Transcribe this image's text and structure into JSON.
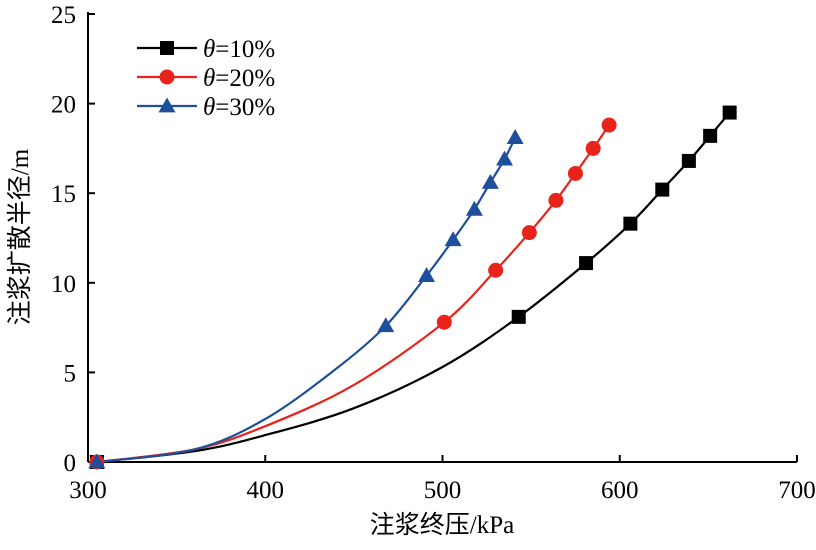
{
  "chart_data": {
    "type": "line",
    "title": "",
    "xlabel": "注浆终压/kPa",
    "ylabel": "注浆扩散半径/m",
    "xlim": [
      300,
      700
    ],
    "ylim": [
      0,
      25
    ],
    "x_ticks": [
      300,
      400,
      500,
      600,
      700
    ],
    "y_ticks": [
      0,
      5,
      10,
      15,
      20,
      25
    ],
    "x_tick_labels": [
      "300",
      "400",
      "500",
      "600",
      "700"
    ],
    "y_tick_labels": [
      "0",
      "5",
      "10",
      "15",
      "20",
      "25"
    ],
    "grid": false,
    "legend_position": "top-left",
    "series": [
      {
        "name": "θ=10%",
        "legend_symbol": "θ",
        "legend_value": "=10%",
        "color": "#000000",
        "marker": "square",
        "points": [
          {
            "x": 305,
            "y": 0.0
          },
          {
            "x": 543,
            "y": 8.1
          },
          {
            "x": 581,
            "y": 11.1
          },
          {
            "x": 606,
            "y": 13.3
          },
          {
            "x": 624,
            "y": 15.2
          },
          {
            "x": 639,
            "y": 16.8
          },
          {
            "x": 651,
            "y": 18.2
          },
          {
            "x": 662,
            "y": 19.5
          }
        ],
        "curve": [
          {
            "x": 305,
            "y": 0.0
          },
          {
            "x": 360,
            "y": 0.6
          },
          {
            "x": 400,
            "y": 1.5
          },
          {
            "x": 450,
            "y": 3.0
          },
          {
            "x": 500,
            "y": 5.3
          },
          {
            "x": 543,
            "y": 8.1
          },
          {
            "x": 581,
            "y": 11.1
          },
          {
            "x": 606,
            "y": 13.3
          },
          {
            "x": 624,
            "y": 15.2
          },
          {
            "x": 639,
            "y": 16.8
          },
          {
            "x": 651,
            "y": 18.2
          },
          {
            "x": 662,
            "y": 19.5
          }
        ]
      },
      {
        "name": "θ=20%",
        "legend_symbol": "θ",
        "legend_value": "=20%",
        "color": "#e8231b",
        "marker": "circle",
        "points": [
          {
            "x": 305,
            "y": 0.0
          },
          {
            "x": 501,
            "y": 7.8
          },
          {
            "x": 530,
            "y": 10.7
          },
          {
            "x": 549,
            "y": 12.8
          },
          {
            "x": 564,
            "y": 14.6
          },
          {
            "x": 575,
            "y": 16.1
          },
          {
            "x": 585,
            "y": 17.5
          },
          {
            "x": 594,
            "y": 18.8
          }
        ],
        "curve": [
          {
            "x": 305,
            "y": 0.0
          },
          {
            "x": 360,
            "y": 0.7
          },
          {
            "x": 400,
            "y": 2.0
          },
          {
            "x": 450,
            "y": 4.3
          },
          {
            "x": 501,
            "y": 7.8
          },
          {
            "x": 530,
            "y": 10.7
          },
          {
            "x": 549,
            "y": 12.8
          },
          {
            "x": 564,
            "y": 14.6
          },
          {
            "x": 575,
            "y": 16.1
          },
          {
            "x": 585,
            "y": 17.5
          },
          {
            "x": 594,
            "y": 18.8
          }
        ]
      },
      {
        "name": "θ=30%",
        "legend_symbol": "θ",
        "legend_value": "=30%",
        "color": "#1f4e9c",
        "marker": "triangle",
        "points": [
          {
            "x": 305,
            "y": 0.0
          },
          {
            "x": 468,
            "y": 7.6
          },
          {
            "x": 491,
            "y": 10.4
          },
          {
            "x": 506,
            "y": 12.4
          },
          {
            "x": 518,
            "y": 14.1
          },
          {
            "x": 527,
            "y": 15.6
          },
          {
            "x": 535,
            "y": 16.9
          },
          {
            "x": 541,
            "y": 18.1
          }
        ],
        "curve": [
          {
            "x": 305,
            "y": 0.0
          },
          {
            "x": 360,
            "y": 0.7
          },
          {
            "x": 400,
            "y": 2.4
          },
          {
            "x": 440,
            "y": 5.2
          },
          {
            "x": 468,
            "y": 7.6
          },
          {
            "x": 491,
            "y": 10.4
          },
          {
            "x": 506,
            "y": 12.4
          },
          {
            "x": 518,
            "y": 14.1
          },
          {
            "x": 527,
            "y": 15.6
          },
          {
            "x": 535,
            "y": 16.9
          },
          {
            "x": 541,
            "y": 18.1
          }
        ]
      }
    ]
  }
}
